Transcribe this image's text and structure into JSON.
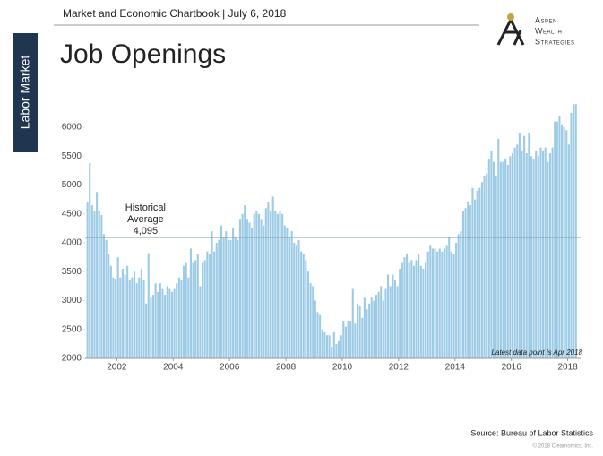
{
  "header": "Market and Economic Chartbook | July 6, 2018",
  "logo": [
    "Aspen",
    "Wealth",
    "Strategies"
  ],
  "section": "Labor Market",
  "copyright": "© 2018 Clearnomics, Inc.",
  "chart_data": {
    "type": "bar",
    "title": "Job Openings",
    "annotation": "Latest data point is Apr 2018",
    "source": "Source: Bureau of Labor Statistics",
    "average_text": [
      "Historical",
      "Average"
    ],
    "average": {
      "value": 4095,
      "label": "4,095"
    },
    "color": "#9dcbe6",
    "average_color": "#7d98ad",
    "xlim": [
      2000.875,
      2018.458
    ],
    "xticks": [
      2002,
      2004,
      2006,
      2008,
      2010,
      2012,
      2014,
      2016,
      2018
    ],
    "ylim": [
      2000,
      6450
    ],
    "yticks": [
      2000,
      2500,
      3000,
      3500,
      4000,
      4500,
      5000,
      5500,
      6000
    ],
    "grid": false,
    "x": [
      2000.917,
      2001,
      2001.083,
      2001.167,
      2001.25,
      2001.333,
      2001.417,
      2001.5,
      2001.583,
      2001.667,
      2001.75,
      2001.833,
      2001.917,
      2002,
      2002.083,
      2002.167,
      2002.25,
      2002.333,
      2002.417,
      2002.5,
      2002.583,
      2002.667,
      2002.75,
      2002.833,
      2002.917,
      2003,
      2003.083,
      2003.167,
      2003.25,
      2003.333,
      2003.417,
      2003.5,
      2003.583,
      2003.667,
      2003.75,
      2003.833,
      2003.917,
      2004,
      2004.083,
      2004.167,
      2004.25,
      2004.333,
      2004.417,
      2004.5,
      2004.583,
      2004.667,
      2004.75,
      2004.833,
      2004.917,
      2005,
      2005.083,
      2005.167,
      2005.25,
      2005.333,
      2005.417,
      2005.5,
      2005.583,
      2005.667,
      2005.75,
      2005.833,
      2005.917,
      2006,
      2006.083,
      2006.167,
      2006.25,
      2006.333,
      2006.417,
      2006.5,
      2006.583,
      2006.667,
      2006.75,
      2006.833,
      2006.917,
      2007,
      2007.083,
      2007.167,
      2007.25,
      2007.333,
      2007.417,
      2007.5,
      2007.583,
      2007.667,
      2007.75,
      2007.833,
      2007.917,
      2008,
      2008.083,
      2008.167,
      2008.25,
      2008.333,
      2008.417,
      2008.5,
      2008.583,
      2008.667,
      2008.75,
      2008.833,
      2008.917,
      2009,
      2009.083,
      2009.167,
      2009.25,
      2009.333,
      2009.417,
      2009.5,
      2009.583,
      2009.667,
      2009.75,
      2009.833,
      2009.917,
      2010,
      2010.083,
      2010.167,
      2010.25,
      2010.333,
      2010.417,
      2010.5,
      2010.583,
      2010.667,
      2010.75,
      2010.833,
      2010.917,
      2011,
      2011.083,
      2011.167,
      2011.25,
      2011.333,
      2011.417,
      2011.5,
      2011.583,
      2011.667,
      2011.75,
      2011.833,
      2011.917,
      2012,
      2012.083,
      2012.167,
      2012.25,
      2012.333,
      2012.417,
      2012.5,
      2012.583,
      2012.667,
      2012.75,
      2012.833,
      2012.917,
      2013,
      2013.083,
      2013.167,
      2013.25,
      2013.333,
      2013.417,
      2013.5,
      2013.583,
      2013.667,
      2013.75,
      2013.833,
      2013.917,
      2014,
      2014.083,
      2014.167,
      2014.25,
      2014.333,
      2014.417,
      2014.5,
      2014.583,
      2014.667,
      2014.75,
      2014.833,
      2014.917,
      2015,
      2015.083,
      2015.167,
      2015.25,
      2015.333,
      2015.417,
      2015.5,
      2015.583,
      2015.667,
      2015.75,
      2015.833,
      2015.917,
      2016,
      2016.083,
      2016.167,
      2016.25,
      2016.333,
      2016.417,
      2016.5,
      2016.583,
      2016.667,
      2016.75,
      2016.833,
      2016.917,
      2017,
      2017.083,
      2017.167,
      2017.25,
      2017.333,
      2017.417,
      2017.5,
      2017.583,
      2017.667,
      2017.75,
      2017.833,
      2017.917,
      2018,
      2018.083,
      2018.167,
      2018.25
    ],
    "values": [
      4700,
      5380,
      4650,
      4550,
      4880,
      4550,
      4480,
      4150,
      4050,
      3800,
      3600,
      3400,
      3380,
      3750,
      3400,
      3550,
      3450,
      3600,
      3350,
      3400,
      3500,
      3300,
      3400,
      3550,
      3350,
      2950,
      3820,
      3050,
      3100,
      3300,
      3150,
      3300,
      3200,
      3100,
      3250,
      3200,
      3150,
      3200,
      3300,
      3400,
      3350,
      3600,
      3650,
      3400,
      3900,
      3650,
      3700,
      3800,
      3250,
      3650,
      3700,
      3850,
      3800,
      4200,
      3850,
      4000,
      4050,
      4300,
      4100,
      4200,
      4050,
      4050,
      4250,
      4100,
      4050,
      4400,
      4500,
      4650,
      4400,
      4350,
      4250,
      4500,
      4550,
      4500,
      4400,
      4300,
      4600,
      4700,
      4550,
      4800,
      4550,
      4500,
      4550,
      4500,
      4300,
      4250,
      4100,
      4200,
      4000,
      3950,
      4050,
      3850,
      3800,
      3700,
      3500,
      3300,
      3250,
      3000,
      2800,
      2750,
      2500,
      2450,
      2400,
      2400,
      2200,
      2450,
      2250,
      2300,
      2400,
      2650,
      2550,
      2650,
      2650,
      3200,
      2600,
      2950,
      2900,
      2700,
      3050,
      2850,
      2950,
      3050,
      3000,
      3100,
      3150,
      3250,
      3000,
      3200,
      3450,
      3250,
      3450,
      3350,
      3250,
      3550,
      3650,
      3750,
      3800,
      3650,
      3700,
      3600,
      3700,
      3800,
      3600,
      3550,
      3650,
      3850,
      3950,
      3900,
      3900,
      3850,
      3900,
      3850,
      3900,
      3950,
      4100,
      3850,
      3800,
      4000,
      4150,
      4200,
      4550,
      4600,
      4700,
      4650,
      4950,
      4750,
      4900,
      4950,
      5050,
      5150,
      5200,
      5450,
      5600,
      5400,
      5150,
      5800,
      5400,
      5400,
      5450,
      5350,
      5500,
      5550,
      5650,
      5700,
      5900,
      5600,
      5850,
      5550,
      5900,
      5500,
      5450,
      5600,
      5500,
      5650,
      5600,
      5650,
      5400,
      5550,
      5650,
      6100,
      6100,
      6200,
      6050,
      6000,
      5950,
      5700,
      6250,
      6400,
      6400
    ]
  }
}
